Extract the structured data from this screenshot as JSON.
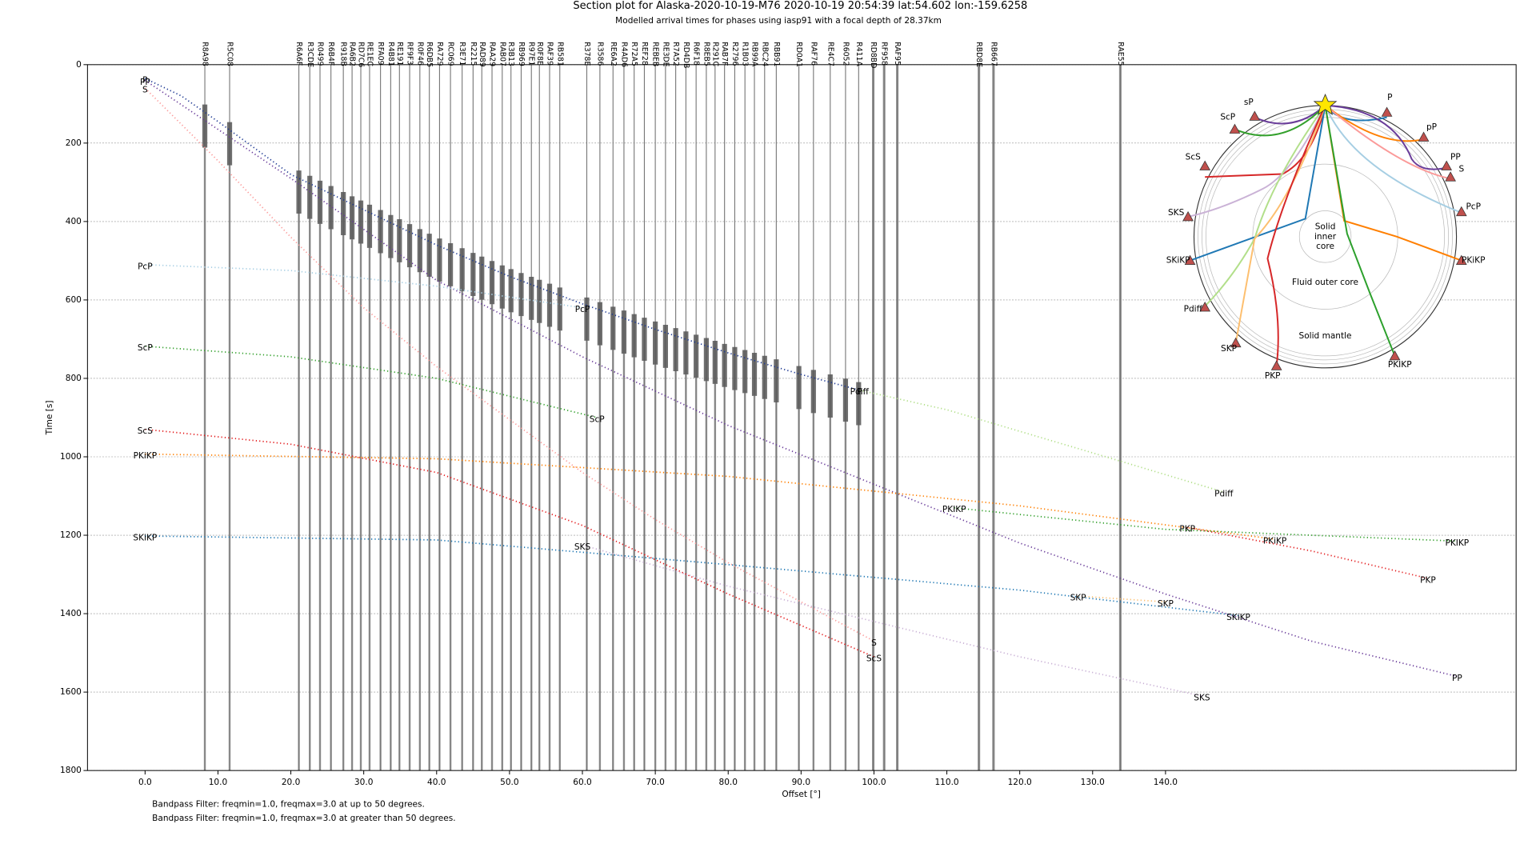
{
  "chart_data": {
    "type": "section",
    "title": "Section plot for Alaska-2020-10-19-M76 2020-10-19 20:54:39 lat:54.602 lon:-159.6258",
    "subtitle": "Modelled arrival times for phases using iasp91 with a focal depth of 28.37km",
    "x_label": "Offset [°]",
    "y_label": "Time [s]",
    "xlim": [
      -7.9,
      188.1
    ],
    "ylim": [
      0,
      1800
    ],
    "y_inverted": true,
    "grid": true,
    "xticks": [
      {
        "value": 0,
        "label": "0.0"
      },
      {
        "value": 10,
        "label": "10.0"
      },
      {
        "value": 20,
        "label": "20.0"
      },
      {
        "value": 30,
        "label": "30.0"
      },
      {
        "value": 40,
        "label": "40.0"
      },
      {
        "value": 50,
        "label": "50.0"
      },
      {
        "value": 60,
        "label": "60.0"
      },
      {
        "value": 70,
        "label": "70.0"
      },
      {
        "value": 80,
        "label": "80.0"
      },
      {
        "value": 90,
        "label": "90.0"
      },
      {
        "value": 100,
        "label": "100.0"
      },
      {
        "value": 110,
        "label": "110.0"
      },
      {
        "value": 120,
        "label": "120.0"
      },
      {
        "value": 130,
        "label": "130.0"
      },
      {
        "value": 140,
        "label": "140.0"
      }
    ],
    "yticks": [
      0,
      200,
      400,
      600,
      800,
      1000,
      1200,
      1400,
      1600,
      1800
    ],
    "trace_color": "#777777",
    "stations": [
      {
        "name": "R8A98",
        "offset": 8.2
      },
      {
        "name": "R5C08",
        "offset": 11.6
      },
      {
        "name": "R6A6F",
        "offset": 21.1
      },
      {
        "name": "R3CDE",
        "offset": 22.6
      },
      {
        "name": "R0499",
        "offset": 24.0
      },
      {
        "name": "R6B4F",
        "offset": 25.5
      },
      {
        "name": "R918B",
        "offset": 27.2
      },
      {
        "name": "RA6B2",
        "offset": 28.4
      },
      {
        "name": "RD7C6",
        "offset": 29.6
      },
      {
        "name": "RE1EC",
        "offset": 30.8
      },
      {
        "name": "RFA09",
        "offset": 32.3
      },
      {
        "name": "R4B81",
        "offset": 33.7
      },
      {
        "name": "RE191",
        "offset": 34.9
      },
      {
        "name": "RF9F3",
        "offset": 36.3
      },
      {
        "name": "R0F46",
        "offset": 37.7
      },
      {
        "name": "R6DB5",
        "offset": 39.0
      },
      {
        "name": "RA729",
        "offset": 40.4
      },
      {
        "name": "RC069",
        "offset": 41.9
      },
      {
        "name": "R3E71",
        "offset": 43.5
      },
      {
        "name": "R2215",
        "offset": 45.0
      },
      {
        "name": "RAD89",
        "offset": 46.2
      },
      {
        "name": "RAA29",
        "offset": 47.6
      },
      {
        "name": "RAB07",
        "offset": 49.0
      },
      {
        "name": "R3B13",
        "offset": 50.2
      },
      {
        "name": "RB969",
        "offset": 51.6
      },
      {
        "name": "R97E1",
        "offset": 53.0
      },
      {
        "name": "R0F8E",
        "offset": 54.1
      },
      {
        "name": "RAF39",
        "offset": 55.5
      },
      {
        "name": "RB581",
        "offset": 56.9
      },
      {
        "name": "R378E",
        "offset": 60.6
      },
      {
        "name": "R3586",
        "offset": 62.4
      },
      {
        "name": "RE6A2",
        "offset": 64.2
      },
      {
        "name": "R4AD6",
        "offset": 65.7
      },
      {
        "name": "R72A5",
        "offset": 67.1
      },
      {
        "name": "REF28",
        "offset": 68.5
      },
      {
        "name": "REBEB",
        "offset": 70.0
      },
      {
        "name": "RE3DE",
        "offset": 71.4
      },
      {
        "name": "R7A52",
        "offset": 72.8,
        "label_color": "#d62728"
      },
      {
        "name": "RD4DB",
        "offset": 74.2
      },
      {
        "name": "R6F18",
        "offset": 75.6
      },
      {
        "name": "R8EB5",
        "offset": 77.0
      },
      {
        "name": "R291C",
        "offset": 78.2
      },
      {
        "name": "RAB7F",
        "offset": 79.5
      },
      {
        "name": "R2796",
        "offset": 80.9
      },
      {
        "name": "R1B03",
        "offset": 82.3
      },
      {
        "name": "RB99A",
        "offset": 83.6
      },
      {
        "name": "RBC24",
        "offset": 85.0
      },
      {
        "name": "RBB91",
        "offset": 86.6
      },
      {
        "name": "RD0A1",
        "offset": 89.7
      },
      {
        "name": "RAF76",
        "offset": 91.7
      },
      {
        "name": "RE4C7",
        "offset": 94.0
      },
      {
        "name": "R6052",
        "offset": 96.1
      },
      {
        "name": "R411A",
        "offset": 97.9
      },
      {
        "name": "RD8BD",
        "offset": 99.9
      },
      {
        "name": "RF958",
        "offset": 101.4
      },
      {
        "name": "RAF95",
        "offset": 103.2
      },
      {
        "name": "RBD8E",
        "offset": 114.4
      },
      {
        "name": "RB667",
        "offset": 116.4
      },
      {
        "name": "RAE55",
        "offset": 133.8
      }
    ],
    "series": [
      {
        "name": "P",
        "color": "#1f3a93",
        "x": [
          0,
          5,
          10,
          20,
          30,
          40,
          50,
          60,
          70,
          80,
          90,
          98
        ],
        "values": [
          35,
          80,
          145,
          280,
          370,
          460,
          540,
          610,
          675,
          735,
          790,
          830
        ]
      },
      {
        "name": "Pdiff",
        "color": "#b2df8a",
        "x": [
          98,
          110,
          120,
          130,
          148
        ],
        "values": [
          830,
          880,
          935,
          990,
          1090
        ]
      },
      {
        "name": "PP",
        "color": "#6a3d9a",
        "x": [
          0,
          20,
          40,
          60,
          80,
          100,
          120,
          140,
          160,
          180
        ],
        "values": [
          40,
          290,
          550,
          745,
          920,
          1070,
          1220,
          1350,
          1470,
          1560
        ]
      },
      {
        "name": "S",
        "color": "#fb9a99",
        "x": [
          0,
          10,
          20,
          30,
          40,
          50,
          60,
          70,
          80,
          90,
          100
        ],
        "values": [
          60,
          245,
          440,
          620,
          770,
          905,
          1040,
          1160,
          1270,
          1370,
          1470
        ]
      },
      {
        "name": "SKS",
        "color": "#cab2d6",
        "x": [
          60,
          80,
          100,
          120,
          145
        ],
        "values": [
          1225,
          1330,
          1420,
          1510,
          1610
        ]
      },
      {
        "name": "PcP",
        "color": "#a6cee3",
        "x": [
          0,
          20,
          40,
          60
        ],
        "values": [
          510,
          525,
          565,
          620
        ]
      },
      {
        "name": "ScP",
        "color": "#33a02c",
        "x": [
          0,
          20,
          40,
          62
        ],
        "values": [
          718,
          745,
          800,
          900
        ]
      },
      {
        "name": "ScS",
        "color": "#e31a1c",
        "x": [
          0,
          20,
          40,
          60,
          80,
          100
        ],
        "values": [
          930,
          968,
          1040,
          1175,
          1350,
          1510
        ]
      },
      {
        "name": "PKiKP",
        "color": "#ff7f00",
        "x": [
          0,
          40,
          80,
          120,
          155
        ],
        "values": [
          993,
          1005,
          1050,
          1125,
          1210
        ]
      },
      {
        "name": "SKiKP",
        "color": "#1f78b4",
        "x": [
          0,
          40,
          80,
          120,
          150
        ],
        "values": [
          1202,
          1212,
          1275,
          1340,
          1405
        ]
      },
      {
        "name": "PKP",
        "color": "#e31a1c",
        "x": [
          143,
          160,
          176
        ],
        "values": [
          1180,
          1240,
          1310
        ]
      },
      {
        "name": "PKIKP",
        "color": "#33a02c",
        "x": [
          111,
          140,
          180
        ],
        "values": [
          1130,
          1185,
          1215
        ]
      },
      {
        "name": "SKP",
        "color": "#fdbf6f",
        "x": [
          128,
          140
        ],
        "values": [
          1355,
          1370
        ]
      }
    ],
    "notes": [
      "Bandpass Filter: freqmin=1.0, freqmax=3.0 at up to 50 degrees.",
      "Bandpass Filter: freqmin=1.0, freqmax=3.0 at greater than 50 degrees."
    ],
    "inset": {
      "phase_labels": [
        "P",
        "sP",
        "pP",
        "ScP",
        "PP",
        "S",
        "ScS",
        "PcP",
        "SKS",
        "SKiKP",
        "PKiKP",
        "Pdiff",
        "SKP",
        "PKIKP",
        "PKP"
      ],
      "inner_core": [
        "Solid",
        "inner",
        "core"
      ],
      "outer_core": "Fluid outer core",
      "mantle": "Solid mantle"
    }
  }
}
